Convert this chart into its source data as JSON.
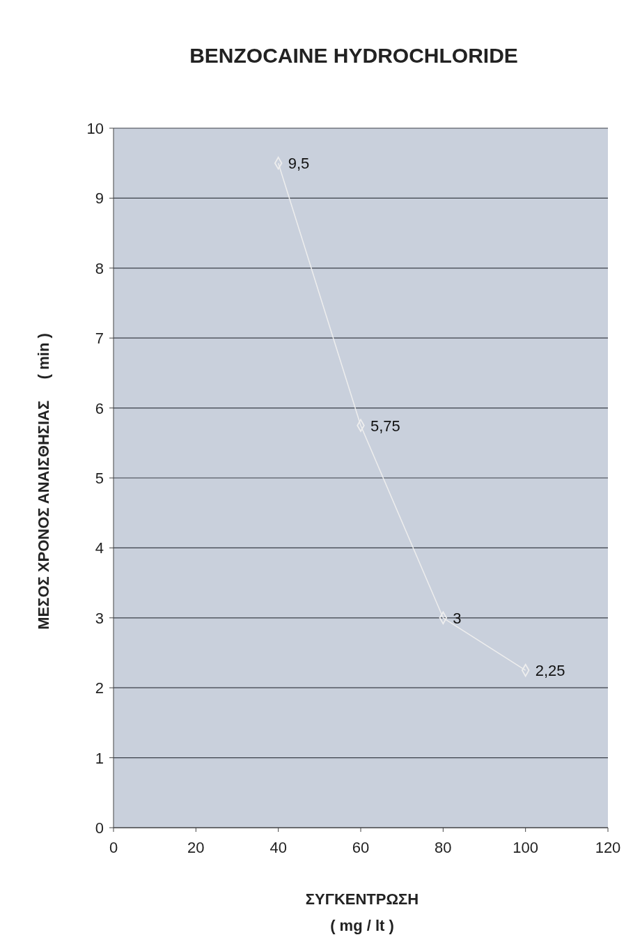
{
  "chart_data": {
    "type": "line",
    "title": "BENZOCAINE  HYDROCHLORIDE",
    "xlabel": "ΣΥΓΚΕΝΤΡΩΣΗ\n( mg / lt )",
    "ylabel": "ΜΕΣΟΣ ΧΡΟΝΟΣ ΑΝΑΙΣΘΗΣΙΑΣ     ( min )",
    "x": [
      40,
      60,
      80,
      100
    ],
    "series": [
      {
        "color": "#eeeeee",
        "values": [
          9.5,
          5.75,
          3,
          2.25
        ],
        "value_labels": [
          "9,5",
          "5,75",
          "3",
          "2,25"
        ]
      }
    ],
    "xlim": [
      0,
      120
    ],
    "xticks": [
      0,
      20,
      40,
      60,
      80,
      100,
      120
    ],
    "ylim": [
      0,
      10
    ],
    "yticks": [
      0,
      1,
      2,
      3,
      4,
      5,
      6,
      7,
      8,
      9,
      10
    ],
    "grid": "y",
    "marker": "diamond",
    "line_style": "solid"
  }
}
